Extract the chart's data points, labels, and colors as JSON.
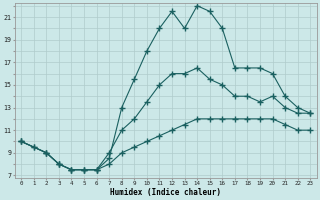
{
  "xlabel": "Humidex (Indice chaleur)",
  "bg_color": "#cce8e8",
  "line_color": "#1a6060",
  "grid_color": "#b0cccc",
  "xlim": [
    -0.5,
    23.5
  ],
  "ylim": [
    6.8,
    22.2
  ],
  "xticks": [
    0,
    1,
    2,
    3,
    4,
    5,
    6,
    7,
    8,
    9,
    10,
    11,
    12,
    13,
    14,
    15,
    16,
    17,
    18,
    19,
    20,
    21,
    22,
    23
  ],
  "yticks_labeled": [
    7,
    9,
    11,
    13,
    15,
    17,
    19,
    21
  ],
  "yticks_all": [
    7,
    8,
    9,
    10,
    11,
    12,
    13,
    14,
    15,
    16,
    17,
    18,
    19,
    20,
    21,
    22
  ],
  "line1_x": [
    0,
    1,
    2,
    3,
    4,
    5,
    6,
    7,
    8,
    9,
    10,
    11,
    12,
    13,
    14,
    15,
    16,
    17,
    18,
    19,
    20,
    21,
    22,
    23
  ],
  "line1_y": [
    10,
    9.5,
    9,
    8,
    7.5,
    7.5,
    7.5,
    8,
    9,
    9.5,
    10,
    10.5,
    11,
    11.5,
    12,
    12,
    12,
    12,
    12,
    12,
    12,
    11.5,
    11,
    11
  ],
  "line2_x": [
    0,
    2,
    3,
    4,
    5,
    6,
    7,
    8,
    9,
    10,
    11,
    12,
    13,
    14,
    15,
    16,
    17,
    18,
    19,
    20,
    21,
    22,
    23
  ],
  "line2_y": [
    10,
    9,
    8,
    7.5,
    7.5,
    7.5,
    9,
    11,
    12,
    13.5,
    15,
    16,
    16,
    16.5,
    15.5,
    15,
    14,
    14,
    13.5,
    14,
    13,
    12.5,
    12.5
  ],
  "line3_x": [
    0,
    1,
    2,
    3,
    4,
    5,
    6,
    7,
    8,
    9,
    10,
    11,
    12,
    13,
    14,
    15,
    16,
    17,
    18,
    19,
    20,
    21,
    22,
    23
  ],
  "line3_y": [
    10,
    9.5,
    9,
    8,
    7.5,
    7.5,
    7.5,
    8.5,
    13,
    15.5,
    18,
    20,
    21.5,
    20,
    22,
    21.5,
    20,
    16.5,
    16.5,
    16.5,
    16,
    14,
    13,
    12.5
  ]
}
